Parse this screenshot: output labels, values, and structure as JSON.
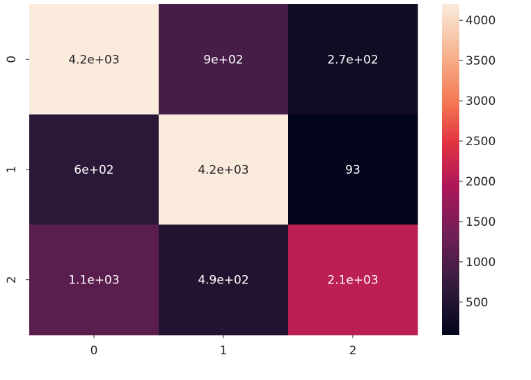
{
  "chart_data": {
    "type": "heatmap",
    "x": [
      "0",
      "1",
      "2"
    ],
    "y": [
      "0",
      "1",
      "2"
    ],
    "values": [
      [
        4200,
        900,
        270
      ],
      [
        600,
        4200,
        93
      ],
      [
        1100,
        490,
        2100
      ]
    ],
    "annotations": [
      [
        "4.2e+03",
        "9e+02",
        "2.7e+02"
      ],
      [
        "6e+02",
        "4.2e+03",
        "93"
      ],
      [
        "1.1e+03",
        "4.9e+02",
        "2.1e+03"
      ]
    ],
    "colorscale": "rocket",
    "vmin": 93,
    "vmax": 4200,
    "colorbar": {
      "ticks": [
        500,
        1000,
        1500,
        2000,
        2500,
        3000,
        3500,
        4000
      ],
      "tick_labels": [
        "500",
        "1000",
        "1500",
        "2000",
        "2500",
        "3000",
        "3500",
        "4000"
      ]
    },
    "title": "",
    "xlabel": "",
    "ylabel": ""
  }
}
